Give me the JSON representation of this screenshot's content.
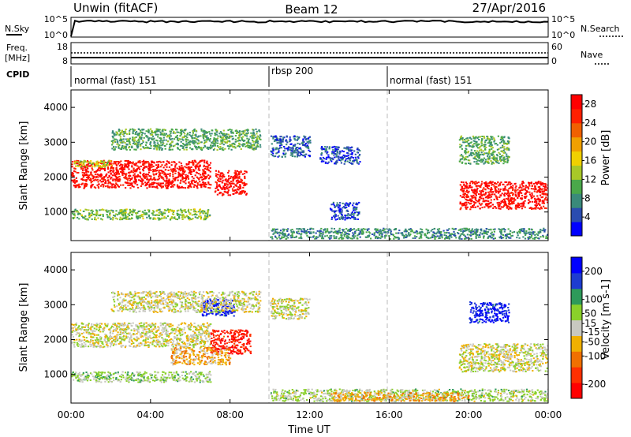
{
  "header": {
    "station": "Unwin (fitACF)",
    "beam": "Beam 12",
    "date": "27/Apr/2016"
  },
  "strip_labels": {
    "nsky": "N.Sky",
    "nsearch": "N.Search",
    "freq_line1": "Freq.",
    "freq_line2": "[MHz]",
    "nave": "Nave",
    "cpid": "CPID"
  },
  "strip_ticks": {
    "nsky_left": [
      "10^5",
      "10^0"
    ],
    "nsky_right": [
      "10^5",
      "10^0"
    ],
    "freq_left": [
      "18",
      "8"
    ],
    "freq_right": [
      "60",
      "0"
    ]
  },
  "cpid_segments": [
    {
      "label": "normal (fast) 151",
      "start_h": 0
    },
    {
      "label": "rbsp 200",
      "start_h": 10
    },
    {
      "label": "normal (fast) 151",
      "start_h": 16
    }
  ],
  "colors": {
    "power_scale": [
      "#0000ff",
      "#2a4cb0",
      "#3a8a7a",
      "#4aa84a",
      "#a8c828",
      "#f0d000",
      "#f0a000",
      "#f06000",
      "#ff2000",
      "#ff0000"
    ],
    "velocity_scale": [
      "#0000ff",
      "#1e3cd0",
      "#2e9a5a",
      "#8ad02a",
      "#c8c8c0",
      "#f0b000",
      "#f07000",
      "#ff3000",
      "#ff0000"
    ]
  },
  "chart_data": [
    {
      "type": "heatmap",
      "name_text": "Power",
      "xlabel": "Time UT",
      "ylabel": "Slant Range [km]",
      "xlim": [
        "00:00",
        "24:00"
      ],
      "ylim": [
        180,
        4500
      ],
      "x_ticks": [
        "00:00",
        "04:00",
        "08:00",
        "12:00",
        "16:00",
        "20:00",
        "00:00"
      ],
      "y_ticks": [
        "1000",
        "2000",
        "3000",
        "4000"
      ],
      "colorbar": {
        "label": "Power [dB]",
        "ticks": [
          "4",
          "8",
          "12",
          "16",
          "20",
          "24",
          "28"
        ],
        "range": [
          0,
          30
        ]
      },
      "regions": [
        {
          "t": [
            0.0,
            7.0
          ],
          "r": [
            1700,
            2500
          ],
          "value": 28
        },
        {
          "t": [
            0.1,
            2.0
          ],
          "r": [
            2300,
            2500
          ],
          "value": 14
        },
        {
          "t": [
            7.2,
            8.8
          ],
          "r": [
            1500,
            2200
          ],
          "value": 28
        },
        {
          "t": [
            0.0,
            7.0
          ],
          "r": [
            800,
            1100
          ],
          "value": 12
        },
        {
          "t": [
            2.0,
            9.5
          ],
          "r": [
            2800,
            3400
          ],
          "value": 10
        },
        {
          "t": [
            10.0,
            12.0
          ],
          "r": [
            2600,
            3200
          ],
          "value": 5
        },
        {
          "t": [
            12.5,
            14.5
          ],
          "r": [
            2400,
            2900
          ],
          "value": 4
        },
        {
          "t": [
            13.0,
            14.5
          ],
          "r": [
            800,
            1300
          ],
          "value": 4
        },
        {
          "t": [
            10.0,
            24.0
          ],
          "r": [
            250,
            550
          ],
          "value": 8
        },
        {
          "t": [
            19.5,
            24.0
          ],
          "r": [
            1100,
            1900
          ],
          "value": 28
        },
        {
          "t": [
            19.5,
            22.0
          ],
          "r": [
            2400,
            3200
          ],
          "value": 10
        }
      ]
    },
    {
      "type": "heatmap",
      "name_text": "Velocity",
      "xlabel": "Time UT",
      "ylabel": "Slant Range [km]",
      "xlim": [
        "00:00",
        "24:00"
      ],
      "ylim": [
        180,
        4500
      ],
      "x_ticks": [
        "00:00",
        "04:00",
        "08:00",
        "12:00",
        "16:00",
        "20:00",
        "00:00"
      ],
      "y_ticks": [
        "1000",
        "2000",
        "3000",
        "4000"
      ],
      "colorbar": {
        "label": "Velocity [m s-1]",
        "ticks": [
          "200",
          "100",
          "50",
          "15",
          "-15",
          "-50",
          "-100",
          "-200"
        ],
        "range": [
          -250,
          250
        ]
      },
      "regions": [
        {
          "t": [
            0.0,
            7.0
          ],
          "r": [
            1800,
            2500
          ],
          "value": 0
        },
        {
          "t": [
            7.0,
            9.0
          ],
          "r": [
            1600,
            2300
          ],
          "value": -200
        },
        {
          "t": [
            5.0,
            8.0
          ],
          "r": [
            1300,
            1800
          ],
          "value": -60
        },
        {
          "t": [
            6.5,
            8.2
          ],
          "r": [
            2700,
            3200
          ],
          "value": 200
        },
        {
          "t": [
            0.0,
            7.0
          ],
          "r": [
            800,
            1100
          ],
          "value": 40
        },
        {
          "t": [
            2.0,
            9.5
          ],
          "r": [
            2800,
            3400
          ],
          "value": 0
        },
        {
          "t": [
            10.0,
            12.0
          ],
          "r": [
            2600,
            3200
          ],
          "value": 0
        },
        {
          "t": [
            10.0,
            24.0
          ],
          "r": [
            250,
            600
          ],
          "value": 30
        },
        {
          "t": [
            13.0,
            20.0
          ],
          "r": [
            250,
            500
          ],
          "value": -60
        },
        {
          "t": [
            19.5,
            24.0
          ],
          "r": [
            1100,
            1900
          ],
          "value": 0
        },
        {
          "t": [
            20.0,
            22.0
          ],
          "r": [
            2500,
            3100
          ],
          "value": 200
        }
      ]
    }
  ]
}
